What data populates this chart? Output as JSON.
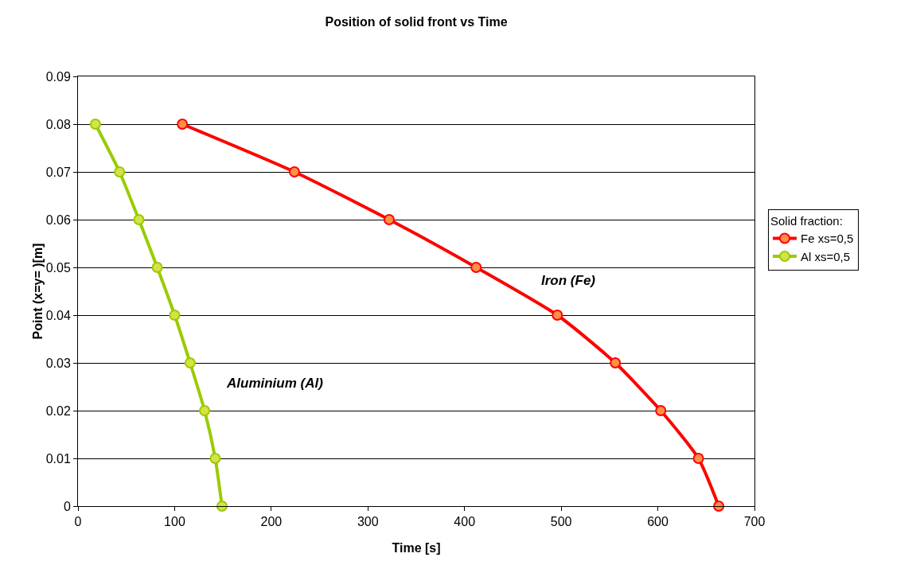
{
  "chart_data": {
    "type": "line",
    "title": "Position of solid front vs Time",
    "xlabel": "Time [s]",
    "ylabel": "Point (x=y= )[m]",
    "legend_title": "Solid fraction:",
    "series": [
      {
        "name": "Fe xs=0,5",
        "color": "#ff0000",
        "x": [
          108,
          224,
          322,
          412,
          496,
          556,
          603,
          642,
          663
        ],
        "values": [
          0.08,
          0.07,
          0.06,
          0.05,
          0.04,
          0.03,
          0.02,
          0.01,
          0
        ]
      },
      {
        "name": "Al xs=0,5",
        "color": "#99cc00",
        "x": [
          18,
          43,
          63,
          82,
          100,
          116,
          131,
          142,
          149
        ],
        "values": [
          0.08,
          0.07,
          0.06,
          0.05,
          0.04,
          0.03,
          0.02,
          0.01,
          0
        ]
      }
    ],
    "annotations": [
      "Iron (Fe)",
      "Aluminium (Al)"
    ],
    "xlim": [
      0,
      700
    ],
    "xticks": [
      0,
      100,
      200,
      300,
      400,
      500,
      600,
      700
    ],
    "ylim": [
      0,
      0.09
    ],
    "yticks": [
      0,
      0.01,
      0.02,
      0.03,
      0.04,
      0.05,
      0.06,
      0.07,
      0.08,
      0.09
    ],
    "grid": "y",
    "legend": "right",
    "marker": "circle",
    "line_style": "solid"
  }
}
